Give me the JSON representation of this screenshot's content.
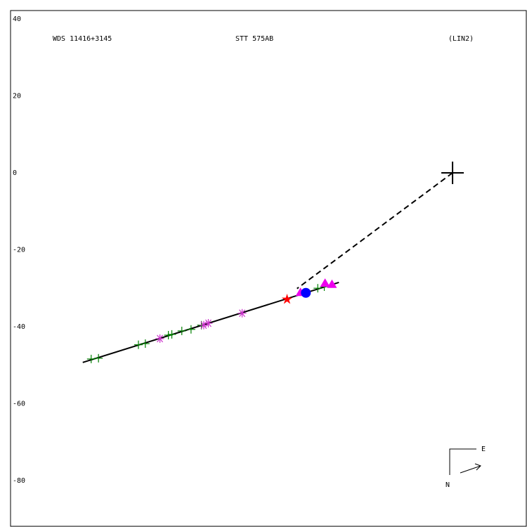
{
  "chart_data": {
    "type": "scatter",
    "labels": [
      "WDS 11416+3145",
      "STT 575AB",
      "(LIN2)"
    ],
    "compass": {
      "east": "E",
      "north": "N"
    },
    "xlim": [
      -115.1,
      19.2
    ],
    "ylim": [
      -91.9,
      42.2
    ],
    "yticks": [
      40,
      20,
      0,
      -20,
      -40,
      -60,
      -80
    ],
    "fit_line": {
      "color": "#000000",
      "x": [
        -96.3,
        -29.6
      ],
      "values": [
        -49.3,
        -28.5
      ]
    },
    "dashed_line": {
      "color": "#000000",
      "x": [
        0,
        -40.5
      ],
      "values": [
        0,
        -30.1
      ]
    },
    "primary": {
      "color": "#000000",
      "marker": "big-plus",
      "x": [
        0
      ],
      "values": [
        0
      ]
    },
    "series": [
      {
        "color": "#008000",
        "marker": "plus",
        "x": [
          -94.1,
          -92.2,
          -81.8,
          -80.0,
          -74.0,
          -73.1,
          -70.5,
          -68.1,
          -65.4,
          -35.1,
          -33.4
        ],
        "values": [
          -48.4,
          -48.2,
          -44.7,
          -44.4,
          -42.2,
          -42.0,
          -41.1,
          -40.7,
          -39.6,
          -30.0,
          -29.6
        ]
      },
      {
        "color": "#cc33cc",
        "marker": "asterisk",
        "x": [
          -76.2,
          -64.8,
          -63.6,
          -54.8
        ],
        "values": [
          -43.1,
          -39.6,
          -39.1,
          -36.5
        ]
      },
      {
        "color": "#ee00ee",
        "marker": "triangle",
        "x": [
          -39.6,
          -33.2,
          -31.4
        ],
        "values": [
          -31.1,
          -28.7,
          -29.0
        ]
      },
      {
        "color": "#ff0000",
        "marker": "star",
        "x": [
          -43.1
        ],
        "values": [
          -32.9
        ]
      },
      {
        "color": "#0000ff",
        "marker": "circle",
        "x": [
          -38.2
        ],
        "values": [
          -31.2
        ]
      }
    ]
  }
}
